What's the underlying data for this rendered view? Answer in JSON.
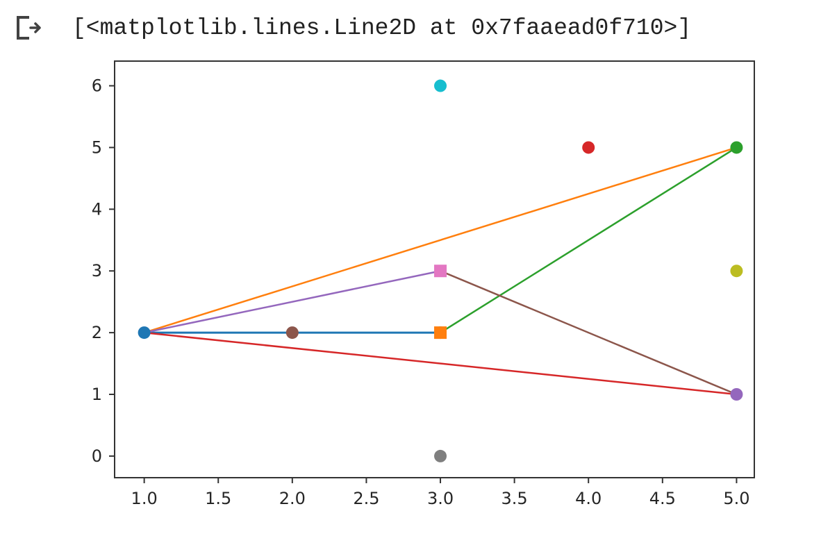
{
  "output": {
    "icon": "output-arrow-icon",
    "text": "[<matplotlib.lines.Line2D at 0x7faaead0f710>]"
  },
  "chart_data": {
    "type": "line",
    "xlim": [
      0.8,
      5.12
    ],
    "ylim": [
      -0.35,
      6.4
    ],
    "xticks": [
      1.0,
      1.5,
      2.0,
      2.5,
      3.0,
      3.5,
      4.0,
      4.5,
      5.0
    ],
    "xtick_labels": [
      "1.0",
      "1.5",
      "2.0",
      "2.5",
      "3.0",
      "3.5",
      "4.0",
      "4.5",
      "5.0"
    ],
    "yticks": [
      0,
      1,
      2,
      3,
      4,
      5,
      6
    ],
    "ytick_labels": [
      "0",
      "1",
      "2",
      "3",
      "4",
      "5",
      "6"
    ],
    "grid": false,
    "series": [
      {
        "x": [
          1,
          3
        ],
        "y": [
          2,
          2
        ],
        "color": "#1f77b4",
        "marker": "o",
        "linewidth": 3
      },
      {
        "x": [
          1,
          5
        ],
        "y": [
          2,
          5
        ],
        "color": "#ff7f0e",
        "marker": "none"
      },
      {
        "x": [
          3,
          5
        ],
        "y": [
          2,
          5
        ],
        "color": "#2ca02c",
        "marker": "none"
      },
      {
        "x": [
          1,
          5
        ],
        "y": [
          2,
          1
        ],
        "color": "#d62728",
        "marker": "none"
      },
      {
        "x": [
          1,
          3
        ],
        "y": [
          2,
          3
        ],
        "color": "#9467bd",
        "marker": "none"
      },
      {
        "x": [
          3,
          5
        ],
        "y": [
          3,
          1
        ],
        "color": "#8c564b",
        "marker": "none"
      },
      {
        "x": [
          2
        ],
        "y": [
          2
        ],
        "color": "#8c564b",
        "marker": "o"
      },
      {
        "x": [
          3
        ],
        "y": [
          2
        ],
        "color": "#ff7f0e",
        "marker": "s"
      },
      {
        "x": [
          5
        ],
        "y": [
          5
        ],
        "color": "#2ca02c",
        "marker": "o"
      },
      {
        "x": [
          4
        ],
        "y": [
          5
        ],
        "color": "#d62728",
        "marker": "o"
      },
      {
        "x": [
          5
        ],
        "y": [
          1
        ],
        "color": "#9467bd",
        "marker": "o"
      },
      {
        "x": [
          3
        ],
        "y": [
          3
        ],
        "color": "#e377c2",
        "marker": "s"
      },
      {
        "x": [
          3
        ],
        "y": [
          0
        ],
        "color": "#7f7f7f",
        "marker": "o"
      },
      {
        "x": [
          5
        ],
        "y": [
          3
        ],
        "color": "#bcbd22",
        "marker": "o"
      },
      {
        "x": [
          3
        ],
        "y": [
          6
        ],
        "color": "#17becf",
        "marker": "o"
      }
    ]
  }
}
